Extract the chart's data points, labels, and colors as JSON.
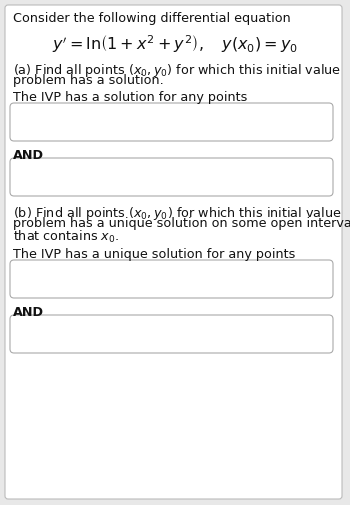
{
  "bg_color": "#e8e8e8",
  "panel_bg": "#ffffff",
  "panel_edge": "#bbbbbb",
  "text_color": "#111111",
  "box_edge": "#aaaaaa",
  "box_face": "#ffffff",
  "title_text": "Consider the following differential equation",
  "equation": "$y'= \\ln\\!\\left(1 + x^2 + y^2\\right),\\quad y(x_0) = y_0$",
  "part_a_q1": "(a) Find all points ",
  "part_a_q1b": "$(x_0, y_0)$",
  "part_a_q2": " for which this initial value",
  "part_a_q3": "problem has a solution.",
  "part_a_ans": "The IVP has a solution for any points",
  "and1": "AND",
  "part_b_q1": "(b) Find all points ",
  "part_b_q1b": "$(x_0, y_0)$",
  "part_b_q2": " for which this initial value",
  "part_b_q3": "problem has a unique solution on some open interval",
  "part_b_q4": "that contains $x_0$.",
  "part_b_ans": "The IVP has a unique solution for any points",
  "and2": "AND",
  "fs": 9.2,
  "fs_eq": 11.5
}
